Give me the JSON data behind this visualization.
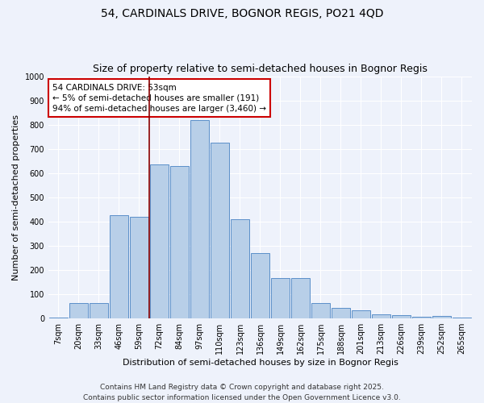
{
  "title1": "54, CARDINALS DRIVE, BOGNOR REGIS, PO21 4QD",
  "title2": "Size of property relative to semi-detached houses in Bognor Regis",
  "xlabel": "Distribution of semi-detached houses by size in Bognor Regis",
  "ylabel": "Number of semi-detached properties",
  "categories": [
    "7sqm",
    "20sqm",
    "33sqm",
    "46sqm",
    "59sqm",
    "72sqm",
    "84sqm",
    "97sqm",
    "110sqm",
    "123sqm",
    "136sqm",
    "149sqm",
    "162sqm",
    "175sqm",
    "188sqm",
    "201sqm",
    "213sqm",
    "226sqm",
    "239sqm",
    "252sqm",
    "265sqm"
  ],
  "values": [
    5,
    65,
    65,
    425,
    420,
    635,
    630,
    820,
    725,
    410,
    270,
    165,
    165,
    65,
    42,
    35,
    18,
    15,
    8,
    10,
    5
  ],
  "bar_color": "#b8cfe8",
  "bar_edge_color": "#5b8fc9",
  "vline_x": 4.5,
  "vline_color": "#8b0000",
  "annotation_text": "54 CARDINALS DRIVE: 53sqm\n← 5% of semi-detached houses are smaller (191)\n94% of semi-detached houses are larger (3,460) →",
  "annotation_box_color": "white",
  "annotation_box_edge": "#cc0000",
  "ylim": [
    0,
    1000
  ],
  "yticks": [
    0,
    100,
    200,
    300,
    400,
    500,
    600,
    700,
    800,
    900,
    1000
  ],
  "footer1": "Contains HM Land Registry data © Crown copyright and database right 2025.",
  "footer2": "Contains public sector information licensed under the Open Government Licence v3.0.",
  "background_color": "#eef2fb",
  "grid_color": "#ffffff",
  "title_fontsize": 10,
  "subtitle_fontsize": 9,
  "axis_label_fontsize": 8,
  "tick_fontsize": 7,
  "annotation_fontsize": 7.5,
  "footer_fontsize": 6.5
}
